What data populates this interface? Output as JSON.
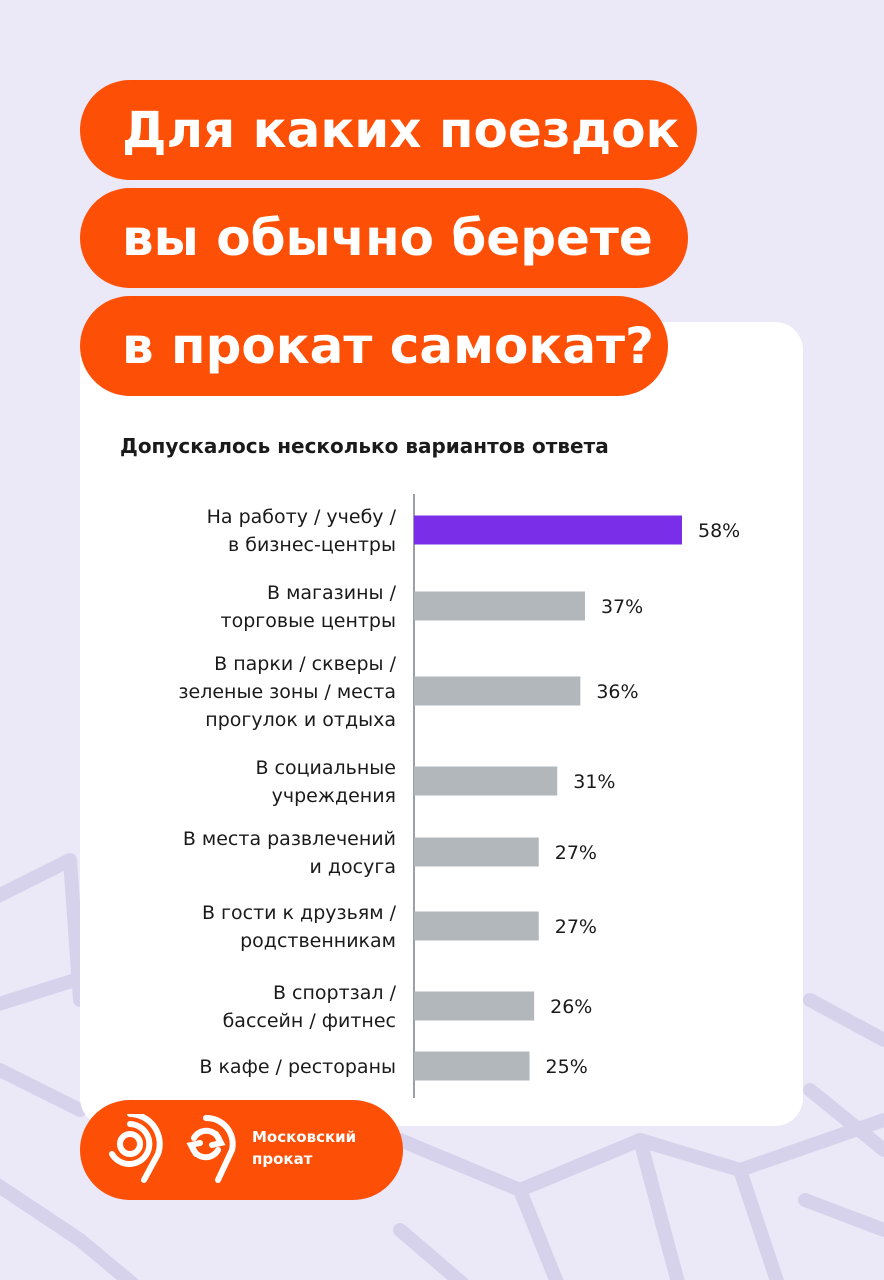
{
  "colors": {
    "background": "#ebe8f8",
    "accent_orange": "#fe4f06",
    "highlight_bar": "#7b2ee8",
    "bar": "#b2b7bc",
    "card": "#ffffff"
  },
  "title_lines": [
    "Для каких поездок",
    "вы обычно берете",
    "в прокат самокат?"
  ],
  "subtitle": "Допускалось несколько вариантов ответа",
  "chart_data": {
    "type": "bar",
    "orientation": "horizontal",
    "categories": [
      [
        "На работу / учебу /",
        "в бизнес-центры"
      ],
      [
        "В магазины /",
        "торговые центры"
      ],
      [
        "В парки / скверы /",
        "зеленые зоны / места",
        "прогулок и отдыха"
      ],
      [
        "В социальные",
        "учреждения"
      ],
      [
        "В места развлечений",
        "и досуга"
      ],
      [
        "В гости к друзьям /",
        "родственникам"
      ],
      [
        "В спортзал /",
        "бассейн / фитнес"
      ],
      [
        "В кафе / рестораны"
      ]
    ],
    "values": [
      58,
      37,
      36,
      31,
      27,
      27,
      26,
      25
    ],
    "value_labels": [
      "58%",
      "37%",
      "36%",
      "31%",
      "27%",
      "27%",
      "26%",
      "25%"
    ],
    "highlight_index": 0,
    "xlim": [
      0,
      58
    ],
    "grid": false
  },
  "logo": {
    "line1": "Московский",
    "line2": "прокат",
    "mark_a_icon": "nine-spiral-icon",
    "mark_b_icon": "nine-refresh-icon"
  }
}
